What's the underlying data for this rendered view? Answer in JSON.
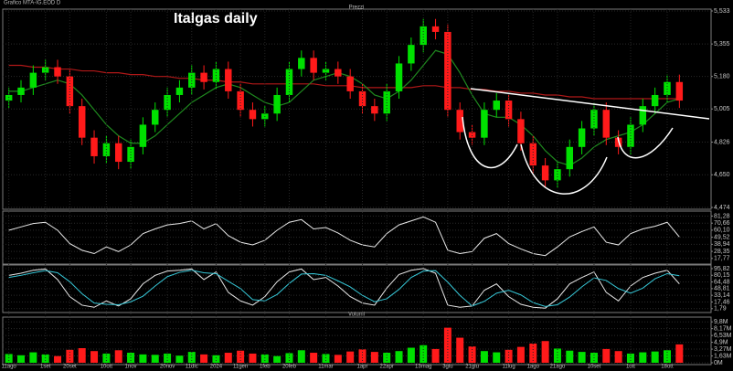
{
  "window_title": "Grafico MTA-IG.EOD D",
  "chart_data": [
    {
      "type": "candlestick",
      "title": "Italgas daily",
      "panel_label": "Prezzi",
      "categories": [
        "11ago",
        null,
        null,
        "1set",
        null,
        "20set",
        null,
        null,
        "10ott",
        null,
        "1nov",
        null,
        null,
        "20nov",
        null,
        "11dic",
        null,
        "2024",
        null,
        "11gen",
        null,
        "1feb",
        null,
        "20feb",
        null,
        null,
        "11mar",
        null,
        null,
        "1apr",
        null,
        "22apr",
        null,
        null,
        "13mag",
        null,
        "3giu",
        null,
        "21giu",
        null,
        null,
        "11lug",
        null,
        "1ago",
        null,
        "21ago",
        null,
        null,
        "10set",
        null,
        null,
        "1ott",
        null,
        null,
        "18ott",
        null
      ],
      "open": [
        5.05,
        5.08,
        5.12,
        5.2,
        5.23,
        5.18,
        5.02,
        4.85,
        4.75,
        4.82,
        4.72,
        4.8,
        4.92,
        5.0,
        5.08,
        5.12,
        5.2,
        5.15,
        5.22,
        5.1,
        5.0,
        4.95,
        4.98,
        5.08,
        5.22,
        5.28,
        5.2,
        5.22,
        5.18,
        5.1,
        5.02,
        4.98,
        5.1,
        5.25,
        5.35,
        5.45,
        5.42,
        5.0,
        4.88,
        4.85,
        5.0,
        5.05,
        4.95,
        4.82,
        4.7,
        4.62,
        4.68,
        4.8,
        4.9,
        5.0,
        4.85,
        4.8,
        4.92,
        5.02,
        5.08,
        5.15
      ],
      "high": [
        5.12,
        5.16,
        5.24,
        5.27,
        5.27,
        5.22,
        5.06,
        4.89,
        4.86,
        4.86,
        4.84,
        4.96,
        5.04,
        5.12,
        5.16,
        5.24,
        5.24,
        5.26,
        5.26,
        5.14,
        5.04,
        5.02,
        5.12,
        5.26,
        5.32,
        5.32,
        5.26,
        5.26,
        5.22,
        5.14,
        5.06,
        5.14,
        5.29,
        5.39,
        5.49,
        5.49,
        5.46,
        5.04,
        4.92,
        5.04,
        5.09,
        5.09,
        4.99,
        4.86,
        4.74,
        4.72,
        4.84,
        4.94,
        5.04,
        5.04,
        4.89,
        4.96,
        5.06,
        5.12,
        5.19,
        5.19
      ],
      "low": [
        5.01,
        5.04,
        5.08,
        5.16,
        5.14,
        4.98,
        4.81,
        4.71,
        4.71,
        4.68,
        4.68,
        4.76,
        4.88,
        4.96,
        5.04,
        5.08,
        5.11,
        5.11,
        5.06,
        4.96,
        4.91,
        4.91,
        4.94,
        5.04,
        5.18,
        5.16,
        5.16,
        5.14,
        5.06,
        4.98,
        4.94,
        4.94,
        5.06,
        5.21,
        5.31,
        5.38,
        4.96,
        4.84,
        4.81,
        4.81,
        4.96,
        4.91,
        4.78,
        4.66,
        4.58,
        4.58,
        4.64,
        4.76,
        4.86,
        4.81,
        4.76,
        4.76,
        4.88,
        4.98,
        5.04,
        5.01
      ],
      "close": [
        5.08,
        5.12,
        5.2,
        5.23,
        5.18,
        5.02,
        4.85,
        4.75,
        4.82,
        4.72,
        4.8,
        4.92,
        5.0,
        5.08,
        5.12,
        5.2,
        5.15,
        5.22,
        5.1,
        5.0,
        4.95,
        4.98,
        5.08,
        5.22,
        5.28,
        5.2,
        5.22,
        5.18,
        5.1,
        5.02,
        4.98,
        5.1,
        5.25,
        5.35,
        5.45,
        5.42,
        5.0,
        4.88,
        4.85,
        5.0,
        5.05,
        4.95,
        4.82,
        4.7,
        4.62,
        4.68,
        4.8,
        4.9,
        5.0,
        4.85,
        4.8,
        4.92,
        5.02,
        5.08,
        5.15,
        5.05
      ],
      "up_color": "#00e000",
      "down_color": "#ff1a1a",
      "series": [
        {
          "color": "#b01818",
          "values": [
            5.24,
            5.24,
            5.23,
            5.23,
            5.22,
            5.22,
            5.21,
            5.21,
            5.2,
            5.2,
            5.19,
            5.19,
            5.18,
            5.18,
            5.17,
            5.17,
            5.16,
            5.16,
            5.15,
            5.15,
            5.14,
            5.14,
            5.14,
            5.14,
            5.14,
            5.14,
            5.13,
            5.13,
            5.13,
            5.12,
            5.12,
            5.12,
            5.12,
            5.12,
            5.13,
            5.13,
            5.12,
            5.12,
            5.11,
            5.11,
            5.1,
            5.1,
            5.09,
            5.09,
            5.08,
            5.08,
            5.07,
            5.07,
            5.06,
            5.06,
            5.06,
            5.06,
            5.06,
            5.06,
            5.06,
            5.06
          ]
        },
        {
          "color": "#1f8a1f",
          "values": [
            5.1,
            5.1,
            5.12,
            5.14,
            5.16,
            5.14,
            5.08,
            5.0,
            4.92,
            4.86,
            4.82,
            4.82,
            4.86,
            4.92,
            4.98,
            5.04,
            5.08,
            5.12,
            5.14,
            5.12,
            5.08,
            5.04,
            5.02,
            5.04,
            5.1,
            5.16,
            5.18,
            5.2,
            5.18,
            5.14,
            5.08,
            5.06,
            5.1,
            5.16,
            5.24,
            5.32,
            5.3,
            5.2,
            5.08,
            4.98,
            4.96,
            4.96,
            4.92,
            4.86,
            4.78,
            4.72,
            4.7,
            4.74,
            4.8,
            4.84,
            4.86,
            4.88,
            4.92,
            4.98,
            5.04,
            5.06
          ]
        }
      ],
      "ylim": [
        4.474,
        5.533
      ],
      "yticks": [
        {
          "value": 5.533,
          "label": "5,533"
        },
        {
          "value": 5.355,
          "label": "5,355"
        },
        {
          "value": 5.18,
          "label": "5,180"
        },
        {
          "value": 5.005,
          "label": "5,005"
        },
        {
          "value": 4.826,
          "label": "4,826"
        },
        {
          "value": 4.65,
          "label": "4,650"
        },
        {
          "value": 4.474,
          "label": "4,474"
        }
      ],
      "grid": true
    },
    {
      "type": "line",
      "series": [
        {
          "color": "#e8e8e8",
          "values": [
            60,
            65,
            70,
            72,
            60,
            40,
            30,
            25,
            35,
            28,
            38,
            55,
            62,
            68,
            70,
            74,
            62,
            70,
            52,
            42,
            38,
            45,
            60,
            72,
            76,
            62,
            64,
            56,
            45,
            38,
            35,
            55,
            68,
            74,
            80,
            72,
            30,
            25,
            28,
            48,
            55,
            40,
            32,
            25,
            22,
            35,
            50,
            58,
            65,
            42,
            38,
            55,
            62,
            66,
            72,
            50
          ]
        }
      ],
      "ylim": [
        12,
        86
      ],
      "yticks": [
        {
          "value": 81.28,
          "label": "81,28"
        },
        {
          "value": 70.66,
          "label": "70,66"
        },
        {
          "value": 60.1,
          "label": "60,10"
        },
        {
          "value": 49.52,
          "label": "49,52"
        },
        {
          "value": 38.94,
          "label": "38,94"
        },
        {
          "value": 28.35,
          "label": "28,35"
        },
        {
          "value": 17.77,
          "label": "17,77"
        }
      ],
      "grid": true
    },
    {
      "type": "line",
      "series": [
        {
          "color": "#e8e8e8",
          "values": [
            80,
            85,
            92,
            95,
            70,
            30,
            10,
            5,
            20,
            8,
            25,
            60,
            80,
            90,
            92,
            95,
            70,
            88,
            40,
            20,
            10,
            30,
            65,
            88,
            95,
            70,
            75,
            55,
            30,
            15,
            10,
            50,
            82,
            92,
            96,
            85,
            10,
            5,
            8,
            45,
            60,
            30,
            12,
            5,
            3,
            25,
            60,
            75,
            88,
            40,
            20,
            55,
            75,
            85,
            92,
            60
          ]
        },
        {
          "color": "#36c8d8",
          "values": [
            75,
            80,
            86,
            91,
            86,
            65,
            37,
            15,
            12,
            11,
            18,
            31,
            55,
            77,
            87,
            92,
            86,
            84,
            66,
            49,
            23,
            20,
            35,
            61,
            83,
            84,
            80,
            67,
            53,
            33,
            18,
            25,
            47,
            75,
            90,
            91,
            64,
            33,
            8,
            19,
            38,
            45,
            34,
            16,
            7,
            11,
            29,
            53,
            74,
            68,
            49,
            38,
            50,
            72,
            84,
            79
          ]
        }
      ],
      "ylim": [
        -3,
        100
      ],
      "yticks": [
        {
          "value": 95.82,
          "label": "95,82"
        },
        {
          "value": 80.15,
          "label": "80,15"
        },
        {
          "value": 64.48,
          "label": "64,48"
        },
        {
          "value": 48.81,
          "label": "48,81"
        },
        {
          "value": 33.14,
          "label": "33,14"
        },
        {
          "value": 17.46,
          "label": "17,46"
        },
        {
          "value": 1.79,
          "label": "1,79"
        }
      ],
      "grid": true
    },
    {
      "type": "bar",
      "panel_label": "Volumi",
      "values": [
        2.1,
        1.8,
        2.5,
        2.0,
        1.6,
        3.1,
        3.5,
        2.8,
        2.2,
        3.0,
        2.4,
        2.0,
        1.9,
        2.2,
        1.7,
        2.6,
        2.0,
        1.8,
        2.4,
        2.9,
        2.2,
        2.0,
        1.6,
        2.3,
        3.0,
        2.4,
        2.1,
        1.9,
        2.7,
        3.2,
        2.6,
        2.4,
        2.8,
        3.6,
        4.2,
        3.3,
        8.4,
        6.0,
        3.9,
        2.8,
        2.5,
        3.1,
        3.8,
        4.6,
        5.2,
        3.4,
        2.9,
        2.6,
        2.4,
        3.3,
        2.8,
        2.2,
        2.5,
        2.7,
        3.0,
        4.4
      ],
      "ylim": [
        0,
        10.5
      ],
      "yticks": [
        {
          "value": 9.8,
          "label": "9,8M"
        },
        {
          "value": 8.17,
          "label": "8,17M"
        },
        {
          "value": 6.53,
          "label": "6,53M"
        },
        {
          "value": 4.9,
          "label": "4,9M"
        },
        {
          "value": 3.27,
          "label": "3,27M"
        },
        {
          "value": 1.63,
          "label": "1,63M"
        },
        {
          "value": 0,
          "label": "0M"
        }
      ],
      "grid": true
    }
  ]
}
